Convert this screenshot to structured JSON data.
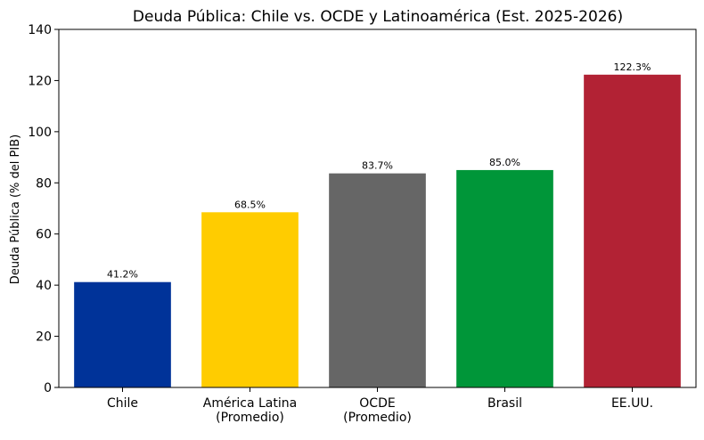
{
  "chart_data": {
    "type": "bar",
    "title": "Deuda Pública: Chile vs. OCDE y Latinoamérica (Est. 2025-2026)",
    "xlabel": "",
    "ylabel": "Deuda Pública (% del PIB)",
    "ylim": [
      0,
      140
    ],
    "yticks": [
      0,
      20,
      40,
      60,
      80,
      100,
      120,
      140
    ],
    "categories": [
      [
        "Chile"
      ],
      [
        "América Latina",
        "(Promedio)"
      ],
      [
        "OCDE",
        "(Promedio)"
      ],
      [
        "Brasil"
      ],
      [
        "EE.UU."
      ]
    ],
    "values": [
      41.2,
      68.5,
      83.7,
      85.0,
      122.3
    ],
    "data_labels": [
      "41.2%",
      "68.5%",
      "83.7%",
      "85.0%",
      "122.3%"
    ],
    "colors": [
      "#003399",
      "#ffcc00",
      "#666666",
      "#009639",
      "#b22234"
    ],
    "grid": false
  }
}
